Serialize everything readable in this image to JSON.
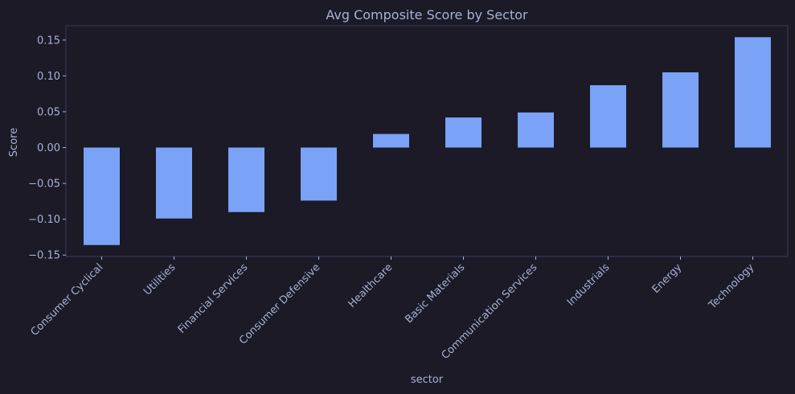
{
  "chart_data": {
    "type": "bar",
    "title": "Avg Composite Score by Sector",
    "xlabel": "sector",
    "ylabel": "Score",
    "categories": [
      "Consumer Cyclical",
      "Utilities",
      "Financial Services",
      "Consumer Defensive",
      "Healthcare",
      "Basic Materials",
      "Communication Services",
      "Industrials",
      "Energy",
      "Technology"
    ],
    "values": [
      -0.136,
      -0.099,
      -0.09,
      -0.074,
      0.019,
      0.042,
      0.049,
      0.087,
      0.105,
      0.154
    ],
    "ylim": [
      -0.152,
      0.17
    ],
    "yticks": [
      -0.15,
      -0.1,
      -0.05,
      0.0,
      0.05,
      0.1,
      0.15
    ],
    "ytick_labels": [
      "−0.15",
      "−0.10",
      "−0.05",
      "0.00",
      "0.05",
      "0.10",
      "0.15"
    ],
    "grid": false,
    "legend": "none"
  },
  "colors": {
    "background": "#1b1a26",
    "bar": "#7aa2f7",
    "axis": "#3b3a5c",
    "text": "#a9b1d6"
  }
}
